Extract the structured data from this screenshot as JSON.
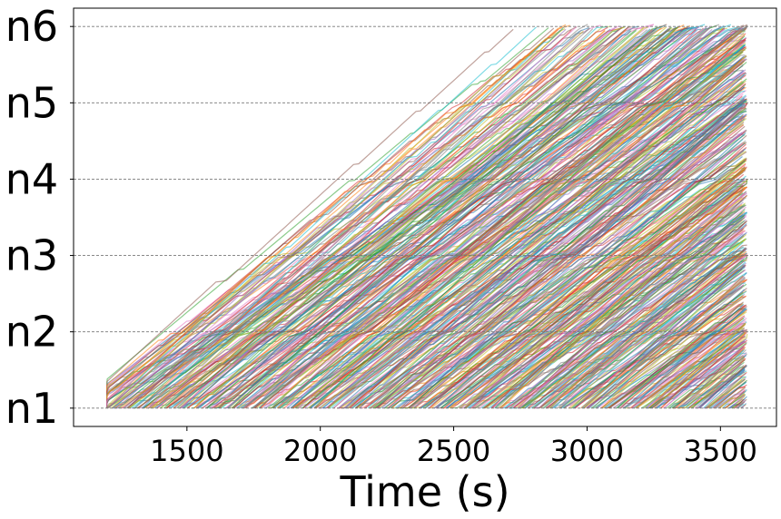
{
  "chart_data": {
    "type": "line",
    "title": "",
    "xlabel": "Time (s)",
    "ylabel": "",
    "xlim": [
      1075,
      3710
    ],
    "ylim": [
      0.76,
      6.24
    ],
    "x_ticks": [
      1500,
      2000,
      2500,
      3000,
      3500
    ],
    "y_categories": [
      "n1",
      "n2",
      "n3",
      "n4",
      "n5",
      "n6"
    ],
    "grid": "horizontal dashed at each station",
    "legend": "none",
    "time_span": [
      1200,
      3600
    ],
    "num_traces_approx": 700,
    "trace_colors": [
      "#1f77b4",
      "#ff7f0e",
      "#2ca02c",
      "#d62728",
      "#9467bd",
      "#8c564b",
      "#e377c2",
      "#7f7f7f",
      "#bcbd22",
      "#17becf"
    ],
    "trace_opacity": 0.55
  }
}
